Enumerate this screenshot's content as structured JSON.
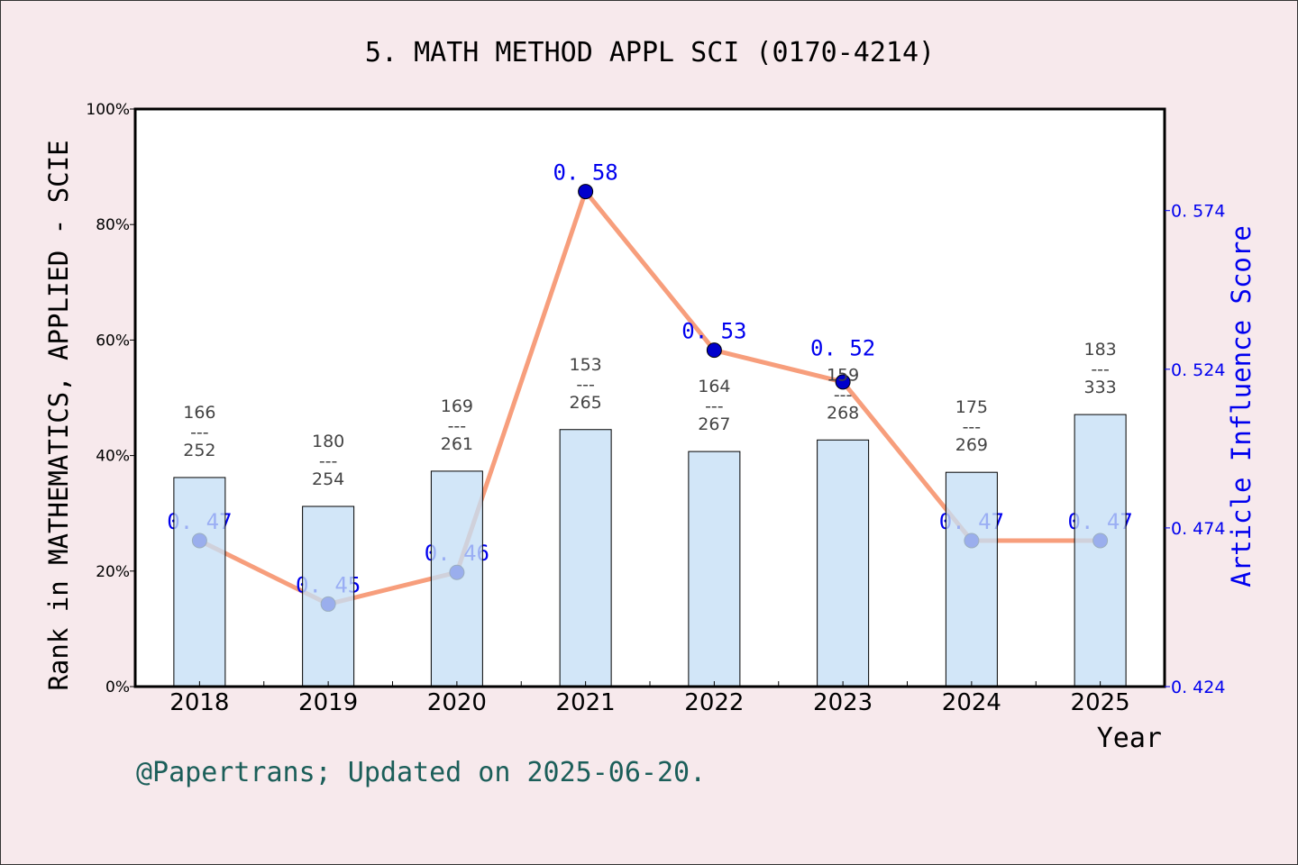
{
  "chart_data": {
    "type": "bar+line",
    "title": "5. MATH METHOD APPL SCI (0170-4214)",
    "xlabel": "Year",
    "ylabel_left": "Rank in MATHEMATICS, APPLIED - SCIE",
    "ylabel_right": "Article Influence Score",
    "categories": [
      "2018",
      "2019",
      "2020",
      "2021",
      "2022",
      "2023",
      "2024",
      "2025"
    ],
    "left_axis": {
      "ylim": [
        0,
        100
      ],
      "ticks": [
        "0%",
        "20%",
        "40%",
        "60%",
        "80%",
        "100%"
      ],
      "tick_values": [
        0,
        20,
        40,
        60,
        80,
        100
      ]
    },
    "right_axis": {
      "ylim": [
        0.424,
        0.606
      ],
      "ticks": [
        "0. 424",
        "0. 474",
        "0. 524",
        "0. 574"
      ],
      "tick_values": [
        0.424,
        0.474,
        0.524,
        0.574
      ]
    },
    "bars": {
      "values_percent": [
        36.2,
        31.2,
        37.3,
        44.5,
        40.7,
        42.7,
        37.1,
        47.1
      ],
      "rank": [
        "166",
        "180",
        "169",
        "153",
        "164",
        "159",
        "175",
        "183"
      ],
      "total": [
        "252",
        "254",
        "261",
        "265",
        "267",
        "268",
        "269",
        "333"
      ],
      "separator": "---",
      "color": "#c5dff6"
    },
    "line": {
      "values": [
        0.47,
        0.45,
        0.46,
        0.58,
        0.53,
        0.52,
        0.47,
        0.47
      ],
      "labels": [
        "0. 47",
        "0. 45",
        "0. 46",
        "0. 58",
        "0. 53",
        "0. 52",
        "0. 47",
        "0. 47"
      ],
      "line_color": "#f79e7c",
      "marker_color": "#0000cc",
      "label_color": "#0000ee"
    },
    "grid": false
  },
  "footer": "@Papertrans; Updated on 2025-06-20."
}
